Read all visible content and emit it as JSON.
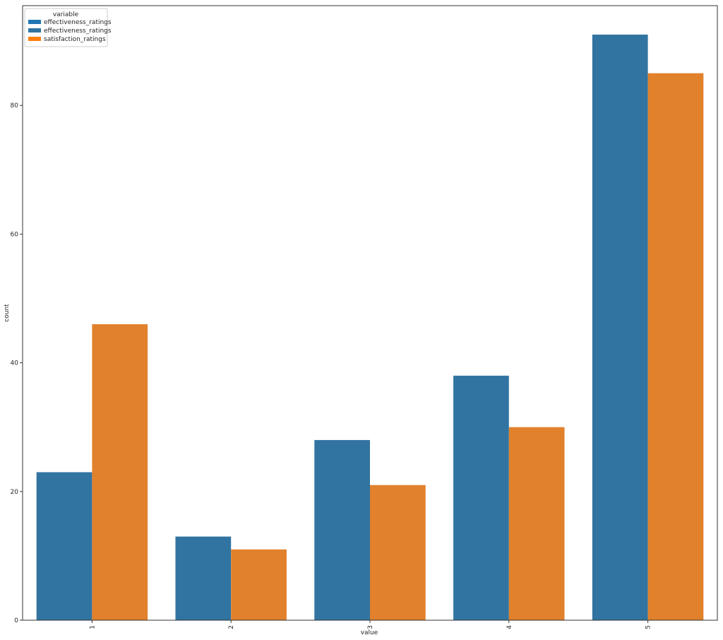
{
  "chart_data": {
    "type": "bar",
    "title": "",
    "xlabel": "value",
    "ylabel": "count",
    "categories": [
      "1",
      "2",
      "3",
      "4",
      "5"
    ],
    "ylim": [
      0,
      95.5
    ],
    "yticks": [
      0,
      20,
      40,
      60,
      80
    ],
    "grid": false,
    "legend": {
      "title": "variable",
      "placement": "top-left",
      "entries": [
        {
          "label": "effectiveness_ratings",
          "color": "#1f77b4"
        },
        {
          "label": "effectiveness_ratings",
          "color": "#3274a1"
        },
        {
          "label": "satisfaction_ratings",
          "color": "#ff7f0e"
        }
      ]
    },
    "series": [
      {
        "name": "effectiveness_ratings",
        "color": "#3274a1",
        "values": [
          23,
          13,
          28,
          38,
          91
        ]
      },
      {
        "name": "satisfaction_ratings",
        "color": "#e1812c",
        "values": [
          46,
          11,
          21,
          30,
          85
        ]
      }
    ]
  }
}
